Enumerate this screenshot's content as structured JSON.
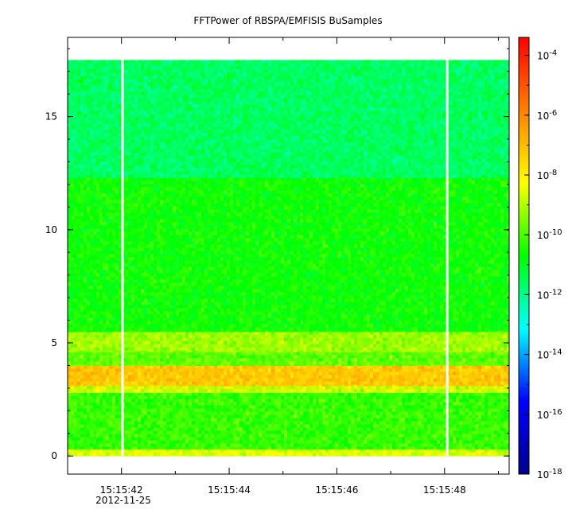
{
  "chart_data": {
    "type": "heatmap",
    "title": "FFTPower of RBSPA/EMFISIS  BuSamples",
    "xlabel": "",
    "ylabel": "",
    "x_date_label": "2012-11-25",
    "xlim": [
      41.0,
      49.2
    ],
    "ylim": [
      -0.8,
      18.5
    ],
    "data_extent": {
      "x": [
        41.0,
        49.2
      ],
      "y": [
        0.0,
        17.5
      ]
    },
    "x_major_ticks": [
      {
        "value": 42,
        "label": "15:15:42"
      },
      {
        "value": 44,
        "label": "15:15:44"
      },
      {
        "value": 46,
        "label": "15:15:46"
      },
      {
        "value": 48,
        "label": "15:15:48"
      }
    ],
    "x_minor_ticks": [
      43,
      45,
      47,
      49
    ],
    "y_major_ticks": [
      {
        "value": 0,
        "label": "0"
      },
      {
        "value": 5,
        "label": "5"
      },
      {
        "value": 10,
        "label": "10"
      },
      {
        "value": 15,
        "label": "15"
      }
    ],
    "y_minor_step": 1,
    "data_gaps_x": [
      42.02,
      48.05
    ],
    "z_scale": "log",
    "zlim_log10": [
      -18,
      -3.4
    ],
    "colorbar_ticks": [
      {
        "exp": -4,
        "label": "10",
        "sup": "-4"
      },
      {
        "exp": -6,
        "label": "10",
        "sup": "-6"
      },
      {
        "exp": -8,
        "label": "10",
        "sup": "-8"
      },
      {
        "exp": -10,
        "label": "10",
        "sup": "-10"
      },
      {
        "exp": -12,
        "label": "10",
        "sup": "-12"
      },
      {
        "exp": -14,
        "label": "10",
        "sup": "-14"
      },
      {
        "exp": -16,
        "label": "10",
        "sup": "-16"
      },
      {
        "exp": -18,
        "label": "10",
        "sup": "-18"
      }
    ],
    "colormap": [
      "#00008b",
      "#0000ff",
      "#00ffff",
      "#00ff00",
      "#ffff00",
      "#ff8000",
      "#ff0000"
    ],
    "frequency_bands": [
      {
        "y": [
          0.0,
          0.3
        ],
        "log10_power": -8.6
      },
      {
        "y": [
          0.3,
          2.8
        ],
        "log10_power": -10.2
      },
      {
        "y": [
          2.8,
          3.1
        ],
        "log10_power": -8.8
      },
      {
        "y": [
          3.1,
          4.0
        ],
        "log10_power": -7.2
      },
      {
        "y": [
          4.0,
          4.6
        ],
        "log10_power": -9.8
      },
      {
        "y": [
          4.6,
          5.5
        ],
        "log10_power": -9.2
      },
      {
        "y": [
          5.5,
          12.3
        ],
        "log10_power": -10.6
      },
      {
        "y": [
          12.3,
          17.5
        ],
        "log10_power": -11.6
      }
    ],
    "noise_sigma_log10": 0.55
  }
}
